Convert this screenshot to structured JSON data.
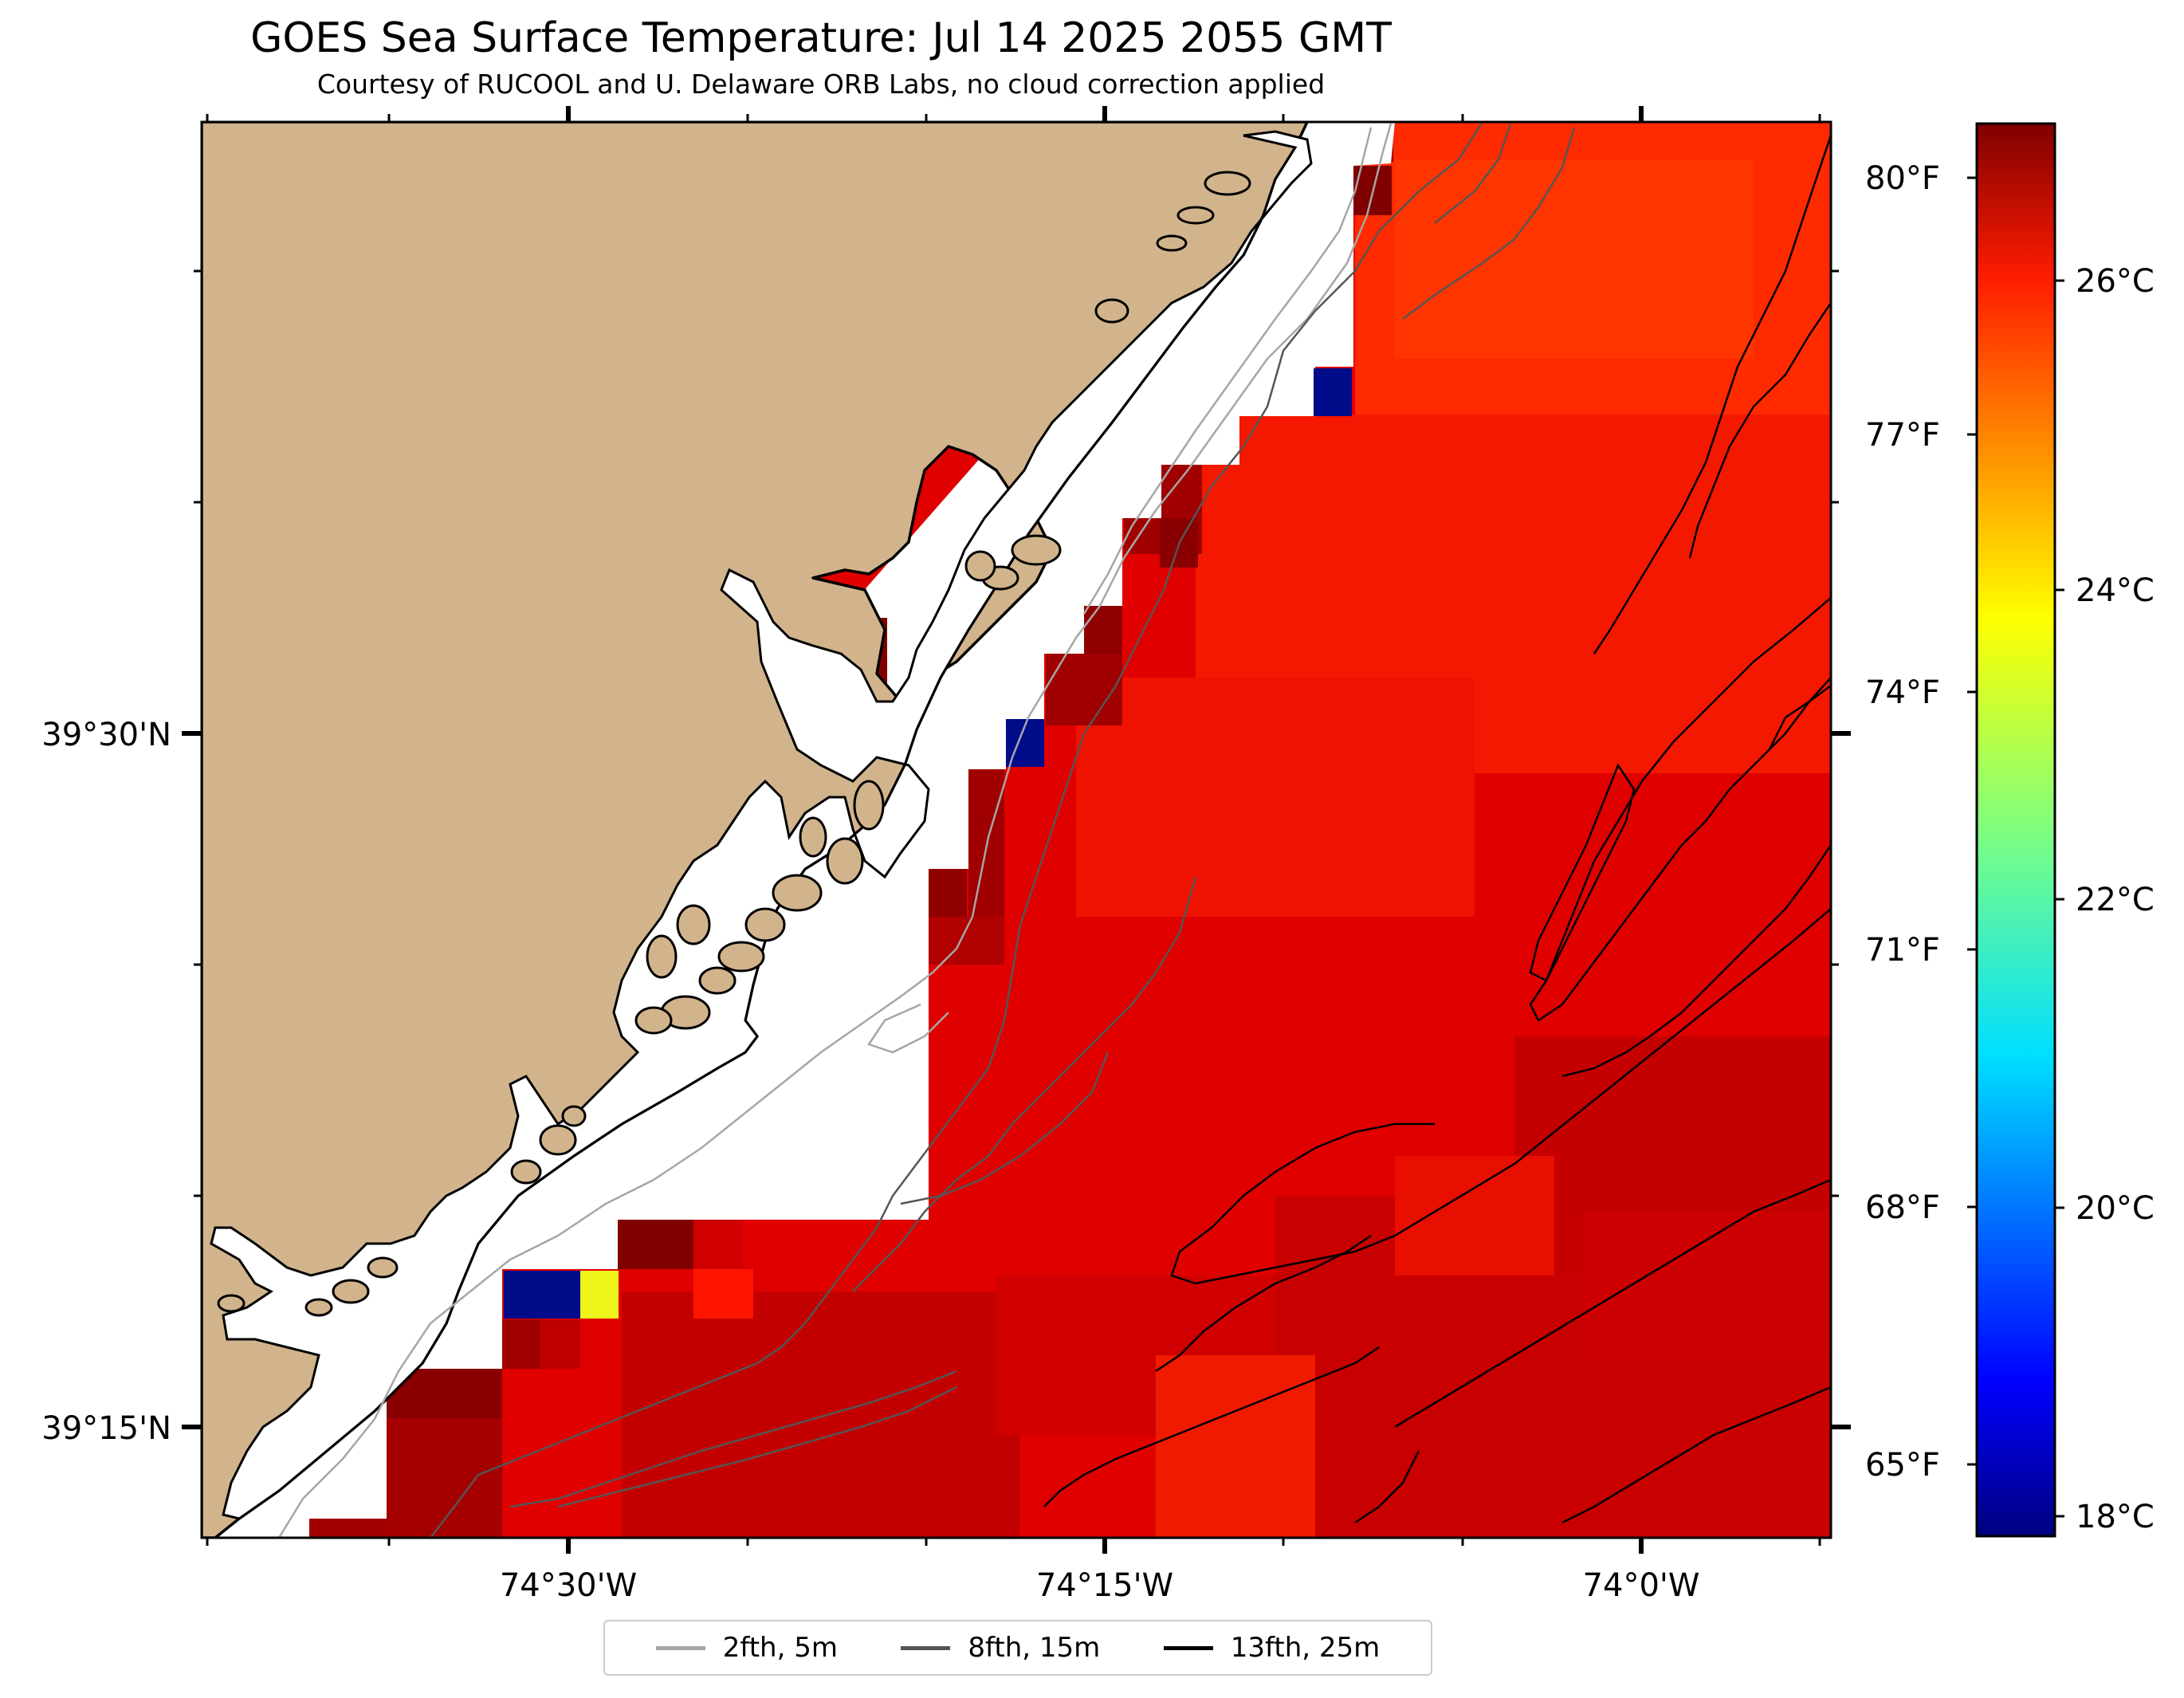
{
  "title": "GOES Sea Surface Temperature: Jul 14 2025 2055 GMT",
  "subtitle": "Courtesy of RUCOOL and U. Delaware ORB Labs, no cloud correction applied",
  "map": {
    "longitude_labels": [
      "74°30'W",
      "74°15'W",
      "74°0'W"
    ],
    "latitude_labels": [
      "39°30'N",
      "39°15'N"
    ],
    "land_color": "#D2B48C",
    "ocean_color": "#E10000",
    "missing_color": "#ffffff"
  },
  "colorbar": {
    "colormap": "jet",
    "celsius_labels": [
      "18°C",
      "20°C",
      "22°C",
      "24°C",
      "26°C"
    ],
    "fahrenheit_labels": [
      "65°F",
      "68°F",
      "71°F",
      "74°F",
      "77°F",
      "80°F"
    ]
  },
  "legend": {
    "items": [
      {
        "label": "2fth, 5m",
        "color": "#a6a6a6"
      },
      {
        "label": "8fth, 15m",
        "color": "#555555"
      },
      {
        "label": "13fth, 25m",
        "color": "#000000"
      }
    ]
  }
}
